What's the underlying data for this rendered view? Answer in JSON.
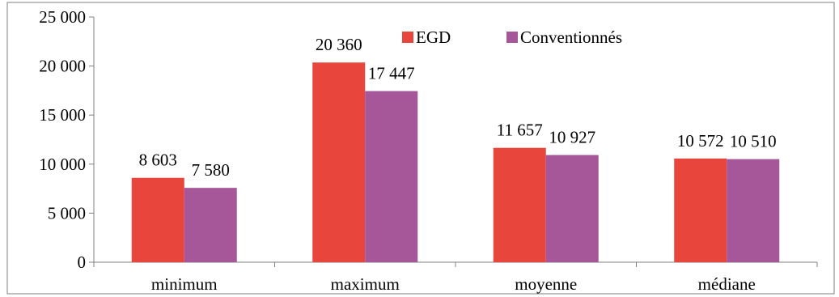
{
  "chart_data": {
    "type": "bar",
    "categories": [
      "minimum",
      "maximum",
      "moyenne",
      "médiane"
    ],
    "series": [
      {
        "name": "EGD",
        "color": "#e8453c",
        "values": [
          8603,
          20360,
          11657,
          10572
        ],
        "labels": [
          "8 603",
          "20 360",
          "11 657",
          "10 572"
        ]
      },
      {
        "name": "Conventionnés",
        "color": "#a65799",
        "values": [
          7580,
          17447,
          10927,
          10510
        ],
        "labels": [
          "7 580",
          "17 447",
          "10 927",
          "10 510"
        ]
      }
    ],
    "ylim": [
      0,
      25000
    ],
    "yticks": [
      0,
      5000,
      10000,
      15000,
      20000,
      25000
    ],
    "ytick_labels": [
      "0",
      "5 000",
      "10 000",
      "15 000",
      "20 000",
      "25 000"
    ],
    "grid": false,
    "legend_position": "top-center",
    "title": "",
    "xlabel": "",
    "ylabel": ""
  }
}
